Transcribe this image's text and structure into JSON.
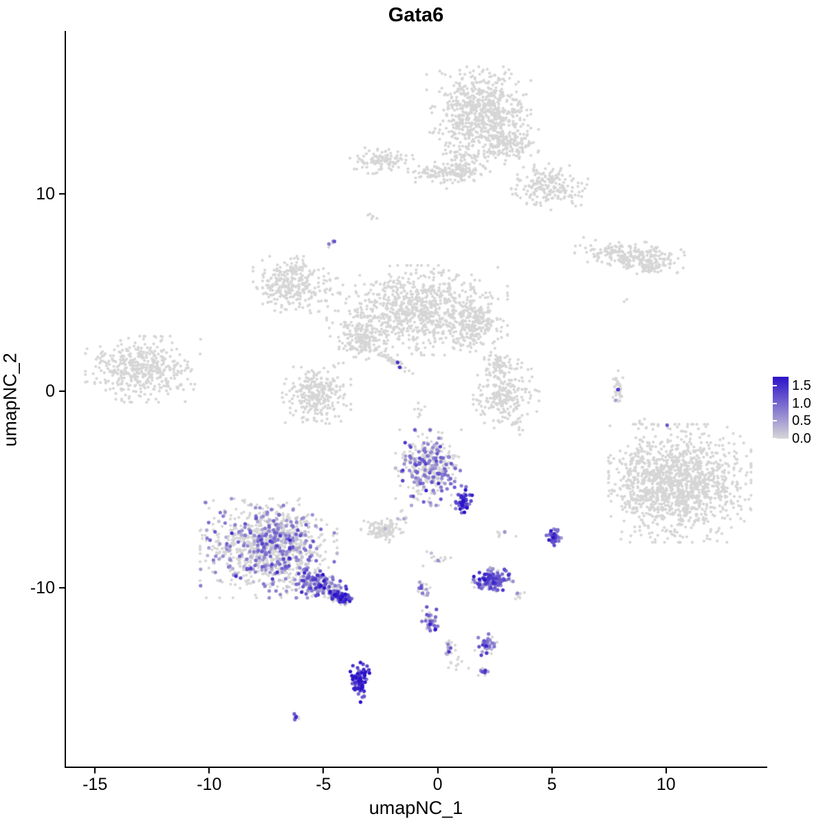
{
  "chart_data": {
    "type": "scatter",
    "title": "Gata6",
    "xlabel": "umapNC_1",
    "ylabel": "umapNC_2",
    "xlim": [
      -16.3,
      14.4
    ],
    "ylim": [
      -19.1,
      18.3
    ],
    "x_ticks": [
      -15,
      -10,
      -5,
      0,
      5,
      10
    ],
    "y_ticks": [
      10,
      0,
      -10
    ],
    "grid": false,
    "background": "#ffffff",
    "point_color_low": "#D6D6D6",
    "point_color_high": "#2C12C9",
    "legend": {
      "position": "right",
      "ticks": [
        1.5,
        1.0,
        0.5,
        0.0
      ],
      "max": 1.75,
      "low_color": "#D6D6D6",
      "high_color": "#2C12C9"
    },
    "clusters": [
      {
        "cx": 1.8,
        "cy": 14.2,
        "rx": 1.9,
        "ry": 1.9,
        "n": 650,
        "f": 0,
        "m": 0
      },
      {
        "cx": 3.1,
        "cy": 12.6,
        "rx": 1.1,
        "ry": 0.9,
        "n": 160,
        "f": 0,
        "m": 0
      },
      {
        "cx": 4.9,
        "cy": 10.4,
        "rx": 1.4,
        "ry": 1.0,
        "n": 200,
        "f": 0,
        "m": 0
      },
      {
        "cx": 1.1,
        "cy": 11.6,
        "rx": 0.9,
        "ry": 1.1,
        "n": 90,
        "f": 0,
        "m": 0
      },
      {
        "cx": -2.5,
        "cy": 11.7,
        "rx": 1.2,
        "ry": 0.55,
        "n": 110,
        "f": 0,
        "m": 0
      },
      {
        "cx": 0.5,
        "cy": 11.1,
        "rx": 1.5,
        "ry": 0.45,
        "n": 130,
        "f": 0,
        "m": 0
      },
      {
        "cx": -2.9,
        "cy": 8.9,
        "rx": 0.25,
        "ry": 0.2,
        "n": 6,
        "f": 0,
        "m": 0
      },
      {
        "cx": 8.4,
        "cy": 6.9,
        "rx": 2.0,
        "ry": 0.6,
        "n": 230,
        "f": 0,
        "m": 0,
        "rot": -5
      },
      {
        "cx": 9.3,
        "cy": 6.3,
        "rx": 0.6,
        "ry": 0.35,
        "n": 50,
        "f": 0,
        "m": 0
      },
      {
        "cx": -4.7,
        "cy": 7.6,
        "rx": 0.2,
        "ry": 0.25,
        "n": 6,
        "f": 0.4,
        "m": 0.9
      },
      {
        "cx": -6.4,
        "cy": 5.4,
        "rx": 1.4,
        "ry": 1.2,
        "n": 300,
        "f": 0,
        "m": 0
      },
      {
        "cx": -0.9,
        "cy": 4.1,
        "rx": 3.3,
        "ry": 1.9,
        "n": 850,
        "f": 0,
        "m": 0
      },
      {
        "cx": -3.4,
        "cy": 2.6,
        "rx": 1.0,
        "ry": 1.0,
        "n": 170,
        "f": 0,
        "m": 0
      },
      {
        "cx": 1.6,
        "cy": 3.4,
        "rx": 1.0,
        "ry": 1.1,
        "n": 170,
        "f": 0,
        "m": 0
      },
      {
        "cx": 2.6,
        "cy": 1.3,
        "rx": 0.5,
        "ry": 0.9,
        "n": 60,
        "f": 0,
        "m": 0
      },
      {
        "cx": -1.9,
        "cy": 1.5,
        "rx": 0.85,
        "ry": 0.18,
        "n": 45,
        "f": 0.05,
        "m": 1.1,
        "rot": -40
      },
      {
        "cx": -5.3,
        "cy": -0.2,
        "rx": 1.25,
        "ry": 1.35,
        "n": 270,
        "f": 0,
        "m": 0
      },
      {
        "cx": -12.9,
        "cy": 1.1,
        "rx": 2.1,
        "ry": 1.4,
        "n": 430,
        "f": 0,
        "m": 0
      },
      {
        "cx": 3.0,
        "cy": -0.2,
        "rx": 1.2,
        "ry": 1.5,
        "n": 230,
        "f": 0,
        "m": 0
      },
      {
        "cx": 7.9,
        "cy": 0.1,
        "rx": 0.2,
        "ry": 0.8,
        "n": 35,
        "f": 0.05,
        "m": 1.2
      },
      {
        "cx": 10.6,
        "cy": -4.7,
        "rx": 2.6,
        "ry": 2.5,
        "n": 1250,
        "f": 0.001,
        "m": 0.8
      },
      {
        "cx": 8.6,
        "cy": -4.3,
        "rx": 0.7,
        "ry": 1.6,
        "n": 90,
        "f": 0,
        "m": 0
      },
      {
        "cx": -0.4,
        "cy": -3.9,
        "rx": 1.2,
        "ry": 1.6,
        "n": 360,
        "f": 0.45,
        "m": 0.75
      },
      {
        "cx": 1.15,
        "cy": -5.6,
        "rx": 0.3,
        "ry": 0.6,
        "n": 45,
        "f": 0.9,
        "m": 1.3
      },
      {
        "cx": -2.4,
        "cy": -7.1,
        "rx": 0.8,
        "ry": 0.5,
        "n": 110,
        "f": 0.02,
        "m": 0.5
      },
      {
        "cx": -7.4,
        "cy": -8.0,
        "rx": 2.5,
        "ry": 2.1,
        "n": 1050,
        "f": 0.3,
        "m": 0.7
      },
      {
        "cx": -5.1,
        "cy": -9.9,
        "rx": 1.1,
        "ry": 0.55,
        "n": 190,
        "f": 0.55,
        "m": 0.95,
        "rot": -25
      },
      {
        "cx": -4.2,
        "cy": -10.5,
        "rx": 0.45,
        "ry": 0.3,
        "n": 70,
        "f": 0.8,
        "m": 1.2,
        "rot": -20
      },
      {
        "cx": 5.1,
        "cy": -7.4,
        "rx": 0.28,
        "ry": 0.38,
        "n": 40,
        "f": 0.85,
        "m": 1.05
      },
      {
        "cx": 2.4,
        "cy": -9.6,
        "rx": 0.75,
        "ry": 0.5,
        "n": 150,
        "f": 0.7,
        "m": 1.0
      },
      {
        "cx": -0.5,
        "cy": -10.1,
        "rx": 0.3,
        "ry": 0.4,
        "n": 18,
        "f": 0.3,
        "m": 0.7
      },
      {
        "cx": -0.3,
        "cy": -11.7,
        "rx": 0.35,
        "ry": 0.6,
        "n": 40,
        "f": 0.55,
        "m": 0.9
      },
      {
        "cx": 0.5,
        "cy": -13.0,
        "rx": 0.3,
        "ry": 0.4,
        "n": 20,
        "f": 0.25,
        "m": 0.6
      },
      {
        "cx": 2.2,
        "cy": -12.9,
        "rx": 0.5,
        "ry": 0.45,
        "n": 45,
        "f": 0.5,
        "m": 0.8
      },
      {
        "cx": -3.4,
        "cy": -14.8,
        "rx": 0.35,
        "ry": 0.85,
        "n": 75,
        "f": 0.95,
        "m": 1.35
      },
      {
        "cx": -6.2,
        "cy": -16.6,
        "rx": 0.2,
        "ry": 0.15,
        "n": 8,
        "f": 0.7,
        "m": 0.95
      },
      {
        "cx": 3.7,
        "cy": -2.0,
        "rx": 0.3,
        "ry": 0.3,
        "n": 4,
        "f": 0,
        "m": 0
      },
      {
        "cx": 8.2,
        "cy": 4.6,
        "rx": 0.2,
        "ry": 0.2,
        "n": 2,
        "f": 0,
        "m": 0
      },
      {
        "cx": 2.9,
        "cy": -7.2,
        "rx": 0.5,
        "ry": 0.4,
        "n": 8,
        "f": 0.1,
        "m": 0.6
      },
      {
        "cx": 0.0,
        "cy": -8.6,
        "rx": 0.7,
        "ry": 0.5,
        "n": 14,
        "f": 0.2,
        "m": 0.6
      },
      {
        "cx": 0.9,
        "cy": -13.9,
        "rx": 0.4,
        "ry": 0.3,
        "n": 10,
        "f": 0.2,
        "m": 0.6
      },
      {
        "cx": 2.0,
        "cy": -14.2,
        "rx": 0.3,
        "ry": 0.25,
        "n": 12,
        "f": 0.4,
        "m": 0.8
      },
      {
        "cx": 3.5,
        "cy": -10.4,
        "rx": 0.3,
        "ry": 0.3,
        "n": 8,
        "f": 0.4,
        "m": 0.7
      },
      {
        "cx": -0.8,
        "cy": -1.0,
        "rx": 0.3,
        "ry": 0.5,
        "n": 8,
        "f": 0,
        "m": 0
      },
      {
        "cx": -1.5,
        "cy": -6.4,
        "rx": 0.4,
        "ry": 0.4,
        "n": 10,
        "f": 0.1,
        "m": 0.6
      },
      {
        "cx": 9.0,
        "cy": -1.6,
        "rx": 0.5,
        "ry": 0.3,
        "n": 5,
        "f": 0,
        "m": 0
      }
    ]
  }
}
